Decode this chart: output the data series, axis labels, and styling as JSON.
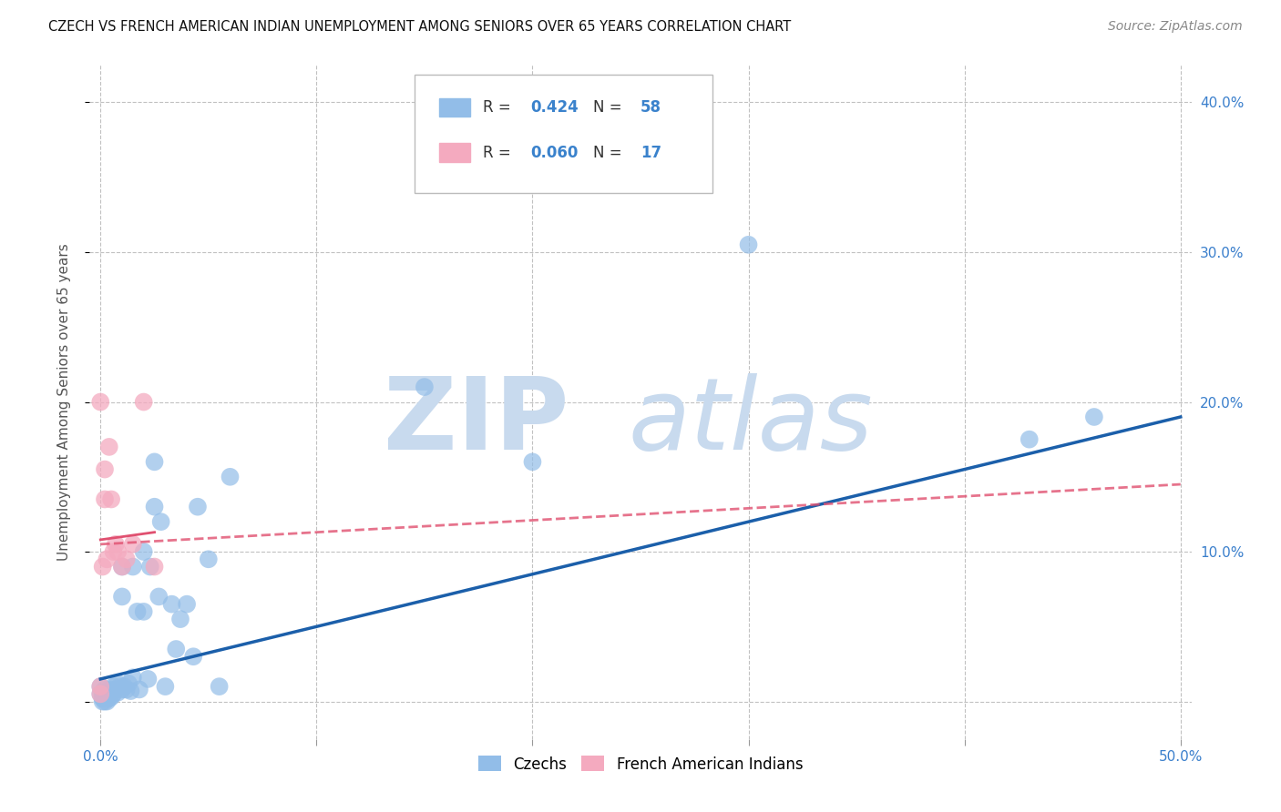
{
  "title": "CZECH VS FRENCH AMERICAN INDIAN UNEMPLOYMENT AMONG SENIORS OVER 65 YEARS CORRELATION CHART",
  "source": "Source: ZipAtlas.com",
  "ylabel": "Unemployment Among Seniors over 65 years",
  "xlim": [
    -0.005,
    0.505
  ],
  "ylim": [
    -0.025,
    0.425
  ],
  "xticks": [
    0.0,
    0.1,
    0.2,
    0.3,
    0.4,
    0.5
  ],
  "xticklabels": [
    "0.0%",
    "",
    "",
    "",
    "",
    "50.0%"
  ],
  "yticks": [
    0.0,
    0.1,
    0.2,
    0.3,
    0.4
  ],
  "right_yticklabels": [
    "",
    "10.0%",
    "20.0%",
    "30.0%",
    "40.0%"
  ],
  "czech_color": "#92BDE8",
  "czech_color_line": "#1B5FAA",
  "french_color": "#F4AABF",
  "french_color_line": "#E05070",
  "legend_color_blue": "#3A82CC",
  "legend_color_pink": "#E05070",
  "watermark_zip_color": "#C8DAEE",
  "watermark_atlas_color": "#C8DAEE",
  "background_color": "#FFFFFF",
  "grid_color": "#BBBBBB",
  "czech_x": [
    0.0,
    0.0,
    0.001,
    0.001,
    0.001,
    0.001,
    0.002,
    0.002,
    0.002,
    0.002,
    0.003,
    0.003,
    0.003,
    0.004,
    0.004,
    0.004,
    0.005,
    0.005,
    0.006,
    0.006,
    0.007,
    0.008,
    0.008,
    0.009,
    0.01,
    0.01,
    0.01,
    0.011,
    0.012,
    0.013,
    0.014,
    0.015,
    0.015,
    0.017,
    0.018,
    0.02,
    0.02,
    0.022,
    0.023,
    0.025,
    0.025,
    0.027,
    0.028,
    0.03,
    0.033,
    0.035,
    0.037,
    0.04,
    0.043,
    0.045,
    0.05,
    0.055,
    0.06,
    0.15,
    0.2,
    0.3,
    0.43,
    0.46
  ],
  "czech_y": [
    0.01,
    0.005,
    0.0,
    0.002,
    0.003,
    0.006,
    0.0,
    0.003,
    0.005,
    0.008,
    0.0,
    0.003,
    0.006,
    0.002,
    0.005,
    0.008,
    0.003,
    0.007,
    0.005,
    0.01,
    0.008,
    0.006,
    0.012,
    0.01,
    0.008,
    0.07,
    0.09,
    0.01,
    0.008,
    0.012,
    0.007,
    0.016,
    0.09,
    0.06,
    0.008,
    0.06,
    0.1,
    0.015,
    0.09,
    0.13,
    0.16,
    0.07,
    0.12,
    0.01,
    0.065,
    0.035,
    0.055,
    0.065,
    0.03,
    0.13,
    0.095,
    0.01,
    0.15,
    0.21,
    0.16,
    0.305,
    0.175,
    0.19
  ],
  "french_x": [
    0.0,
    0.0,
    0.0,
    0.001,
    0.002,
    0.002,
    0.003,
    0.004,
    0.005,
    0.006,
    0.007,
    0.008,
    0.01,
    0.012,
    0.015,
    0.02,
    0.025
  ],
  "french_y": [
    0.005,
    0.01,
    0.2,
    0.09,
    0.135,
    0.155,
    0.095,
    0.17,
    0.135,
    0.1,
    0.105,
    0.1,
    0.09,
    0.095,
    0.105,
    0.2,
    0.09
  ],
  "czech_line_x0": 0.0,
  "czech_line_x1": 0.5,
  "czech_line_y0": 0.015,
  "czech_line_y1": 0.19,
  "french_line_x0": 0.0,
  "french_line_x1": 0.5,
  "french_line_y0": 0.105,
  "french_line_y1": 0.145
}
